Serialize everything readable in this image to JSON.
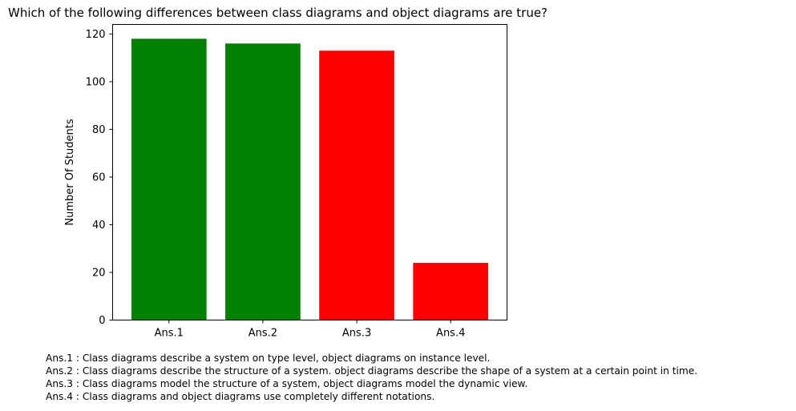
{
  "chart_data": {
    "type": "bar",
    "title": "Which of the following differences between class diagrams and object diagrams are true?",
    "xlabel": "",
    "ylabel": "Number Of Students",
    "categories": [
      "Ans.1",
      "Ans.2",
      "Ans.3",
      "Ans.4"
    ],
    "values": [
      118,
      116,
      113,
      24
    ],
    "bar_colors": [
      "#008000",
      "#008000",
      "#ff0000",
      "#ff0000"
    ],
    "ylim": [
      0,
      124
    ],
    "yticks": [
      0,
      20,
      40,
      60,
      80,
      100,
      120
    ],
    "grid": false,
    "legend": "none"
  },
  "notes": [
    "Ans.1 : Class diagrams describe a system on type level, object diagrams on instance level.",
    "Ans.2 : Class diagrams describe the structure of a system. object diagrams describe the shape of a system at a certain point in time.",
    "Ans.3 : Class diagrams model the structure of a system, object diagrams model the dynamic view.",
    "Ans.4 : Class diagrams and object diagrams use completely different notations."
  ]
}
